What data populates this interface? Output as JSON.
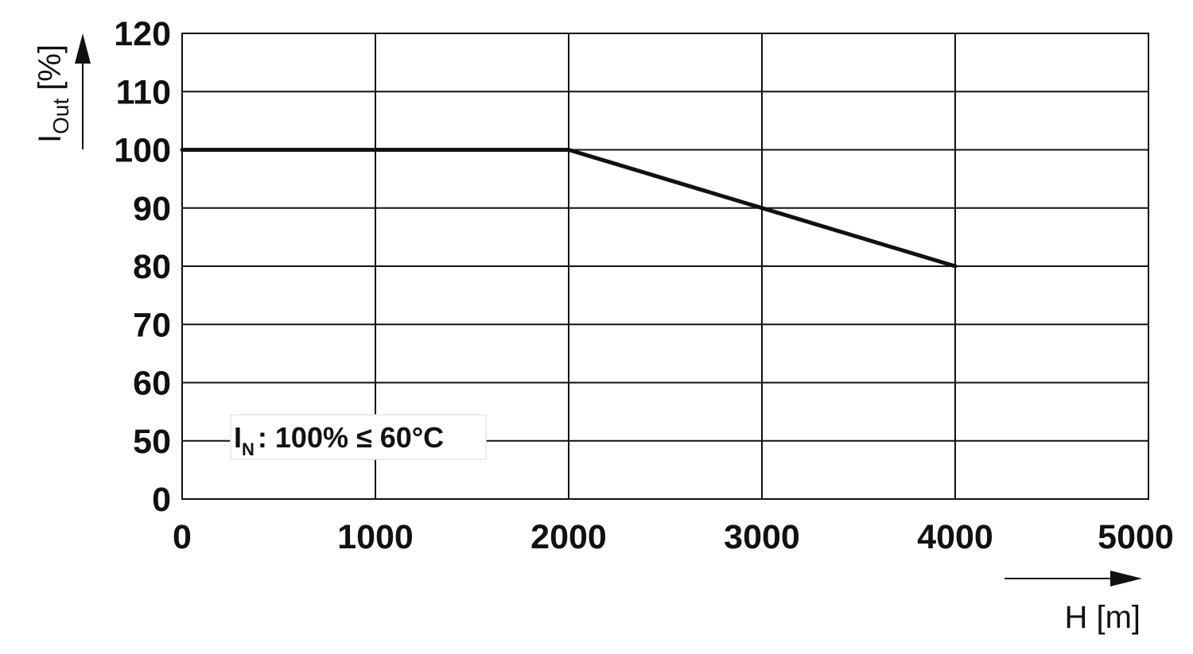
{
  "chart_data": {
    "type": "line",
    "title": "",
    "xlabel": "H [m]",
    "ylabel": {
      "main": "I",
      "sub": "Out",
      "unit": "[%]"
    },
    "xlim": [
      0,
      5000
    ],
    "x_ticks": [
      "0",
      "1000",
      "2000",
      "3000",
      "4000",
      "5000"
    ],
    "y_ticks": [
      "0",
      "50",
      "60",
      "70",
      "80",
      "90",
      "100",
      "110",
      "120"
    ],
    "y_axis_note": "broken scale between 0 and 50",
    "grid": true,
    "series": [
      {
        "x": [
          0,
          2000,
          4000
        ],
        "y": [
          100,
          100,
          80
        ],
        "color": "#111111"
      }
    ],
    "annotation": {
      "main": "I",
      "sub": "N",
      "text": ": 100% ≤ 60°C"
    }
  }
}
